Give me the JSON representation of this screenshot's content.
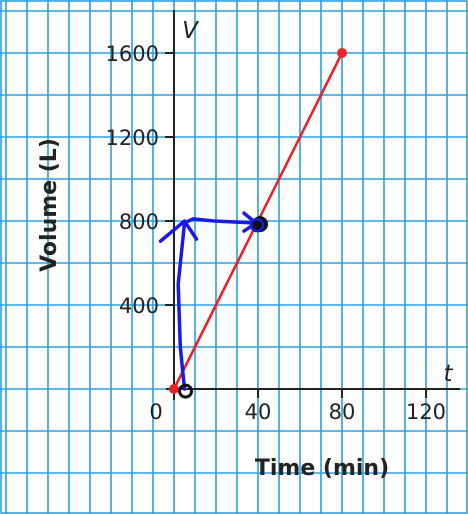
{
  "chart_data": {
    "type": "line",
    "title": "",
    "xlabel": "Time (min)",
    "ylabel": "Volume (L)",
    "x_var": "t",
    "y_var": "V",
    "origin_label": "0",
    "xlim": [
      -8,
      130
    ],
    "ylim": [
      -300,
      1700
    ],
    "x_ticks": [
      40,
      80,
      120
    ],
    "x_tick_labels": [
      "40",
      "80",
      "120"
    ],
    "y_ticks": [
      400,
      800,
      1200,
      1600
    ],
    "y_tick_labels": [
      "400",
      "800",
      "1200",
      "1600"
    ],
    "grid": true,
    "series": [
      {
        "x": [
          0,
          80
        ],
        "y": [
          0,
          1600
        ],
        "color": "#e8232c"
      }
    ],
    "annotation": {
      "color": "#1a1ae8",
      "path_x": [
        5,
        3,
        2,
        5,
        9,
        19,
        40
      ],
      "path_y": [
        0,
        200,
        500,
        790,
        810,
        800,
        790
      ],
      "target_point": [
        40,
        790
      ]
    },
    "colors": {
      "grid": "#2aa0df",
      "axis": "#222222",
      "line": "#e8232c",
      "annotation": "#1a1ae8"
    }
  }
}
